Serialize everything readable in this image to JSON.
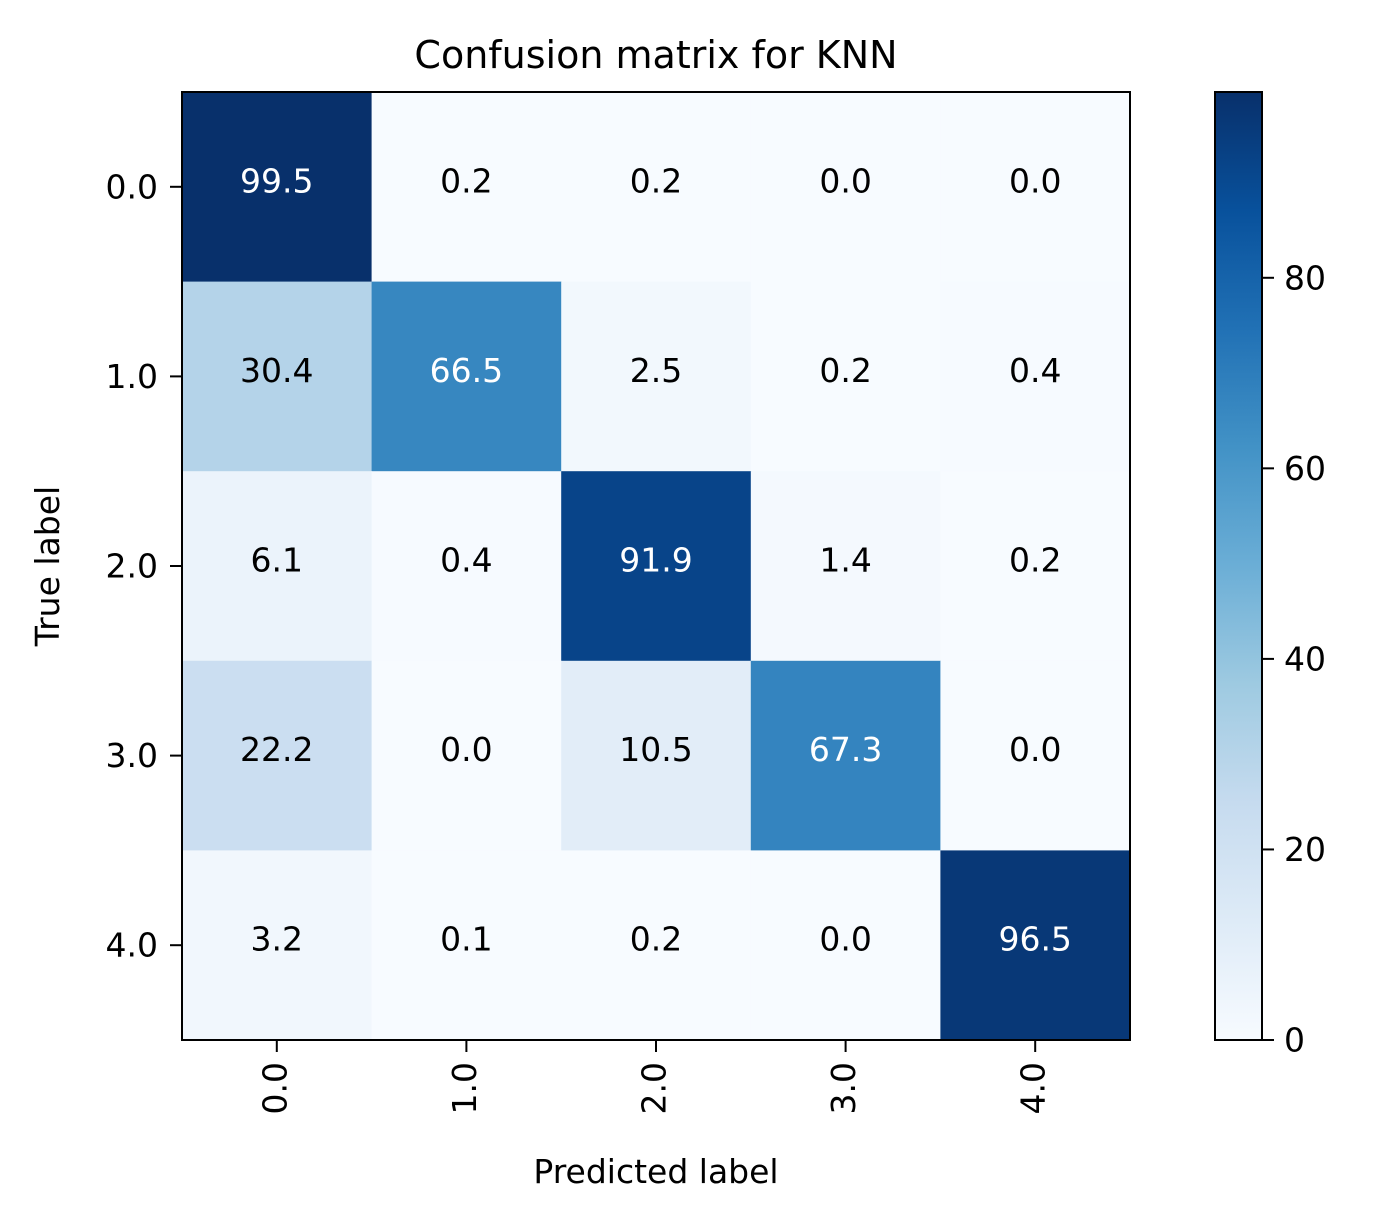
{
  "chart_data": {
    "type": "heatmap",
    "title": "Confusion matrix for KNN",
    "xlabel": "Predicted label",
    "ylabel": "True label",
    "x_categories": [
      "0.0",
      "1.0",
      "2.0",
      "3.0",
      "4.0"
    ],
    "y_categories": [
      "0.0",
      "1.0",
      "2.0",
      "3.0",
      "4.0"
    ],
    "values": [
      [
        99.5,
        0.2,
        0.2,
        0.0,
        0.0
      ],
      [
        30.4,
        66.5,
        2.5,
        0.2,
        0.4
      ],
      [
        6.1,
        0.4,
        91.9,
        1.4,
        0.2
      ],
      [
        22.2,
        0.0,
        10.5,
        67.3,
        0.0
      ],
      [
        3.2,
        0.1,
        0.2,
        0.0,
        96.5
      ]
    ],
    "value_format": "0.1",
    "colormap": "Blues",
    "color_range": [
      0,
      99.5
    ],
    "colorbar_ticks": [
      "0",
      "20",
      "40",
      "60",
      "80"
    ],
    "colorbar_tick_values": [
      0,
      20,
      40,
      60,
      80
    ],
    "x_tick_rotation": "vertical",
    "text_color_threshold": 49.75,
    "colors": {
      "low": "#f7fbff",
      "high": "#08306b",
      "text_dark": "#000000",
      "text_light": "#ffffff"
    }
  }
}
